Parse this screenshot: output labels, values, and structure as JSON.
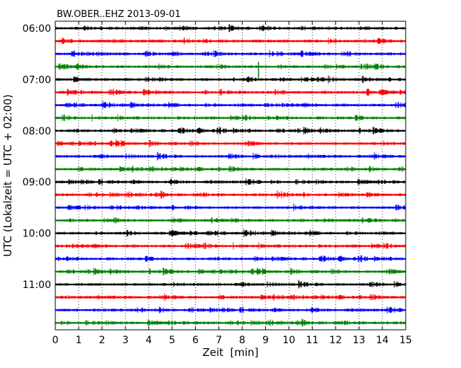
{
  "chart_data": {
    "type": "line",
    "title": "BW.OBER..EHZ 2013-09-01",
    "xlabel": "Zeit  [min]",
    "ylabel": "UTC (Lokalzeit = UTC + 02:00)",
    "xlim": [
      0,
      15
    ],
    "x_ticks": [
      0,
      1,
      2,
      3,
      4,
      5,
      6,
      7,
      8,
      9,
      10,
      11,
      12,
      13,
      14,
      15
    ],
    "y_tick_labels": [
      "06:00",
      "07:00",
      "08:00",
      "09:00",
      "10:00",
      "11:00"
    ],
    "trace_interval_minutes": 15,
    "trace_count": 24,
    "colors": [
      "#000000",
      "#ff0000",
      "#0000ff",
      "#008000"
    ],
    "grid": "vertical dotted"
  }
}
